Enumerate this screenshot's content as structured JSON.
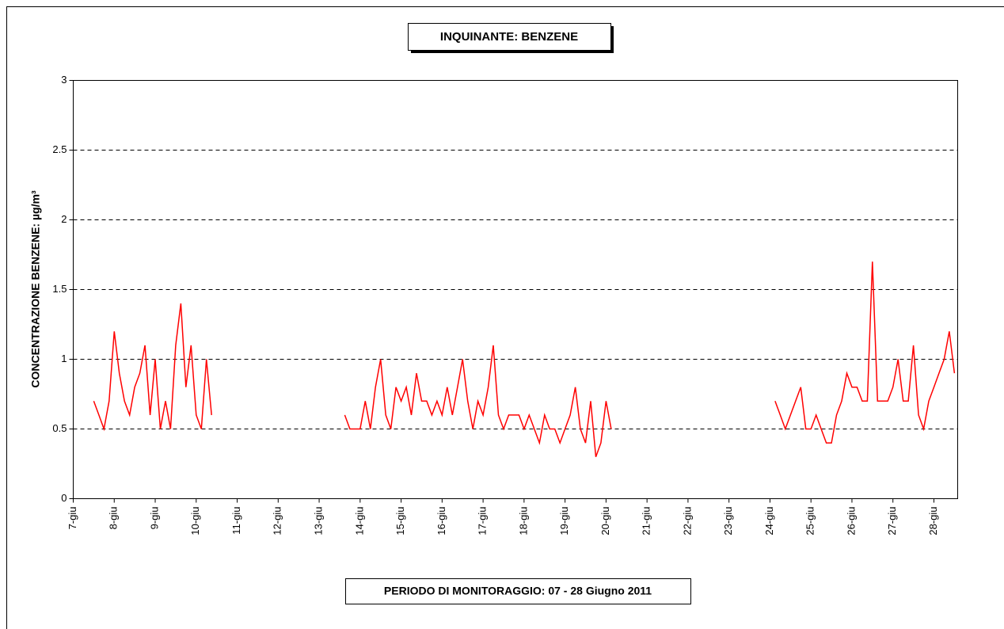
{
  "chart_data": {
    "type": "line",
    "title": "INQUINANTE: BENZENE",
    "y_label": "CONCENTRAZIONE BENZENE:  µg/m³",
    "x_label": "PERIODO DI MONITORAGGIO: 07 - 28 Giugno 2011",
    "color": "#ff0000",
    "x": [
      7.5,
      7.625,
      7.75,
      7.875,
      8,
      8.125,
      8.25,
      8.375,
      8.5,
      8.625,
      8.75,
      8.875,
      9,
      9.125,
      9.25,
      9.375,
      9.5,
      9.625,
      9.75,
      9.875,
      10,
      10.125,
      10.25,
      10.375,
      10.5,
      13.625,
      13.75,
      13.875,
      14,
      14.125,
      14.25,
      14.375,
      14.5,
      14.625,
      14.75,
      14.875,
      15,
      15.125,
      15.25,
      15.375,
      15.5,
      15.625,
      15.75,
      15.875,
      16,
      16.125,
      16.25,
      16.375,
      16.5,
      16.625,
      16.75,
      16.875,
      17,
      17.125,
      17.25,
      17.375,
      17.5,
      17.625,
      17.75,
      17.875,
      18,
      18.125,
      18.25,
      18.375,
      18.5,
      18.625,
      18.75,
      18.875,
      19,
      19.125,
      19.25,
      19.375,
      19.5,
      19.625,
      19.75,
      19.875,
      20,
      20.125,
      20.25,
      24.125,
      24.25,
      24.375,
      24.5,
      24.625,
      24.75,
      24.875,
      25,
      25.125,
      25.25,
      25.375,
      25.5,
      25.625,
      25.75,
      25.875,
      26,
      26.125,
      26.25,
      26.375,
      26.5,
      26.625,
      26.75,
      26.875,
      27,
      27.125,
      27.25,
      27.375,
      27.5,
      27.625,
      27.75,
      27.875,
      28,
      28.125,
      28.25,
      28.375,
      28.5
    ],
    "values": [
      0.7,
      0.6,
      0.5,
      0.7,
      1.2,
      0.9,
      0.7,
      0.6,
      0.8,
      0.9,
      1.1,
      0.6,
      1.0,
      0.5,
      0.7,
      0.5,
      1.1,
      1.4,
      0.8,
      1.1,
      0.6,
      0.5,
      1.0,
      0.6,
      null,
      0.6,
      0.5,
      0.5,
      0.5,
      0.7,
      0.5,
      0.8,
      1.0,
      0.6,
      0.5,
      0.8,
      0.7,
      0.8,
      0.6,
      0.9,
      0.7,
      0.7,
      0.6,
      0.7,
      0.6,
      0.8,
      0.6,
      0.8,
      1.0,
      0.7,
      0.5,
      0.7,
      0.6,
      0.8,
      1.1,
      0.6,
      0.5,
      0.6,
      0.6,
      0.6,
      0.5,
      0.6,
      0.5,
      0.4,
      0.6,
      0.5,
      0.5,
      0.4,
      0.5,
      0.6,
      0.8,
      0.5,
      0.4,
      0.7,
      0.3,
      0.4,
      0.7,
      0.5,
      null,
      0.7,
      0.6,
      0.5,
      0.6,
      0.7,
      0.8,
      0.5,
      0.5,
      0.6,
      0.5,
      0.4,
      0.4,
      0.6,
      0.7,
      0.9,
      0.8,
      0.8,
      0.7,
      0.7,
      1.7,
      0.7,
      0.7,
      0.7,
      0.8,
      1.0,
      0.7,
      0.7,
      1.1,
      0.6,
      0.5,
      0.7,
      0.8,
      0.9,
      1.0,
      1.2,
      0.9
    ],
    "xlim": [
      7,
      28.58
    ],
    "xticks": [
      {
        "value": 7,
        "label": "7-giu"
      },
      {
        "value": 8,
        "label": "8-giu"
      },
      {
        "value": 9,
        "label": "9-giu"
      },
      {
        "value": 10,
        "label": "10-giu"
      },
      {
        "value": 11,
        "label": "11-giu"
      },
      {
        "value": 12,
        "label": "12-giu"
      },
      {
        "value": 13,
        "label": "13-giu"
      },
      {
        "value": 14,
        "label": "14-giu"
      },
      {
        "value": 15,
        "label": "15-giu"
      },
      {
        "value": 16,
        "label": "16-giu"
      },
      {
        "value": 17,
        "label": "17-giu"
      },
      {
        "value": 18,
        "label": "18-giu"
      },
      {
        "value": 19,
        "label": "19-giu"
      },
      {
        "value": 20,
        "label": "20-giu"
      },
      {
        "value": 21,
        "label": "21-giu"
      },
      {
        "value": 22,
        "label": "22-giu"
      },
      {
        "value": 23,
        "label": "23-giu"
      },
      {
        "value": 24,
        "label": "24-giu"
      },
      {
        "value": 25,
        "label": "25-giu"
      },
      {
        "value": 26,
        "label": "26-giu"
      },
      {
        "value": 27,
        "label": "27-giu"
      },
      {
        "value": 28,
        "label": "28-giu"
      }
    ],
    "ylim": [
      0,
      3
    ],
    "yticks": [
      0,
      0.5,
      1,
      1.5,
      2,
      2.5,
      3
    ],
    "grid": true
  }
}
